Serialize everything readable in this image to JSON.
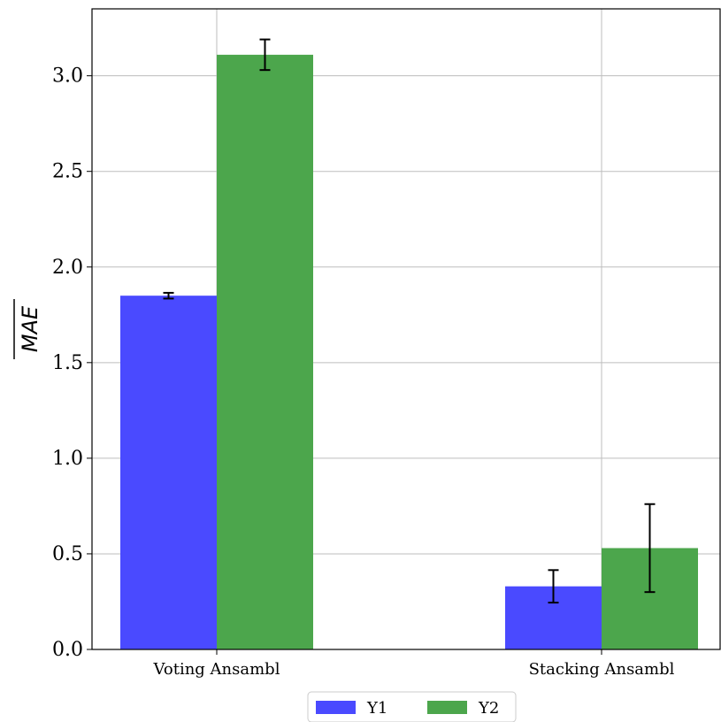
{
  "chart_data": {
    "type": "bar",
    "categories": [
      "Voting Ansambl",
      "Stacking Ansambl"
    ],
    "series": [
      {
        "name": "Y1",
        "values": [
          1.85,
          0.33
        ],
        "errors": [
          0.015,
          0.085
        ]
      },
      {
        "name": "Y2",
        "values": [
          3.11,
          0.53
        ],
        "errors": [
          0.08,
          0.23
        ]
      }
    ],
    "ylabel": "MAE",
    "ylabel_overline": true,
    "ylim": [
      0,
      3.35
    ],
    "yticks": [
      0.0,
      0.5,
      1.0,
      1.5,
      2.0,
      2.5,
      3.0
    ],
    "ytick_labels": [
      "0.0",
      "0.5",
      "1.0",
      "1.5",
      "2.0",
      "2.5",
      "3.0"
    ],
    "grid": true,
    "legend_position": "bottom-center",
    "colors": {
      "Y1": "#4a4aff",
      "Y2": "#4ca64c"
    }
  }
}
